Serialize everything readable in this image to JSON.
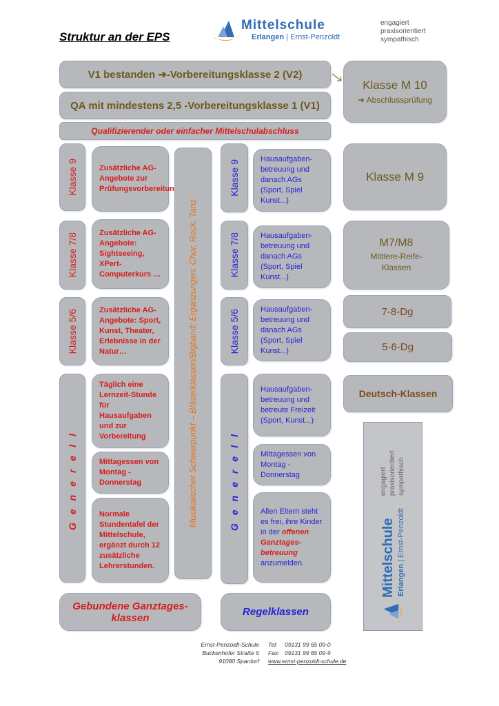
{
  "header": {
    "title": "Struktur an der EPS",
    "logo": {
      "name": "Mittelschule",
      "sub_left": "Erlangen",
      "sub_right": "Ernst-Penzoldt",
      "tagline": [
        "engagiert",
        "praxisorientiert",
        "sympathisch"
      ]
    }
  },
  "top": {
    "v2": "V1 bestanden ➔-Vorbereitungsklasse 2 (V2)",
    "v1": "QA mit mindestens 2,5 -Vorbereitungsklasse 1 (V1)",
    "abschluss": "Qualifizierender oder einfacher Mittelschulabschluss",
    "m10_title": "Klasse M 10",
    "m10_sub": "➔ Abschlussprüfung"
  },
  "left": {
    "k9": "Klasse 9",
    "k9_text": "Zusätzliche AG-Angebote zur Prüfungsvorbereitung.",
    "k78": "Klasse 7/8",
    "k78_text": "Zusätzliche AG-Angebote: Sightseeing, XPert-Computerkurs …",
    "k56": "Klasse 5/6",
    "k56_text": "Zusätzliche AG-Angebote: Sport, Kunst, Theater, Erlebnisse in der Natur…",
    "generell": "Generell",
    "g1": "Täglich eine Lernzeit-Stunde für Hausaufgaben und zur Vorbereitung",
    "g2": "Mittagessen von Montag - Donnerstag",
    "g3": "Normale Stundentafel der Mittelschule, ergänzt durch 12 zusätzliche Lehrerstunden.",
    "footer": "Gebundene Ganztages-klassen"
  },
  "music": "Musikalischer Schwerpunkt – Bläserklassen/Bigband; Ergänzungen: Chor, Rock, Tanz",
  "middle": {
    "k9": "Klasse 9",
    "k9_text": "Hausaufgaben-betreuung und danach AGs (Sport, Spiel Kunst...)",
    "k78": "Klasse 7/8",
    "k78_text": "Hausaufgaben-betreuung und danach AGs (Sport, Spiel Kunst...)",
    "k56": "Klasse 5/6",
    "k56_text": "Hausaufgaben-betreuung und danach AGs (Sport, Spiel Kunst...)",
    "generell": "Generell",
    "g1": "Hausaufgaben-betreuung und betreute Freizeit (Sport, Kunst...)",
    "g2": "Mittagessen von Montag - Donnerstag",
    "g3_a": "Allen Eltern steht es frei, ihre Kinder in der ",
    "g3_b": "offenen Ganztages-betreuung",
    "g3_c": " anzumelden.",
    "footer": "Regelklassen"
  },
  "right": {
    "m9": "Klasse M 9",
    "m78_title": "M7/M8",
    "m78_sub": "Mittlere-Reife-Klassen",
    "dg78": "7-8-Dg",
    "dg56": "5-6-Dg",
    "deutsch": "Deutsch-Klassen"
  },
  "footer": {
    "name": "Ernst-Penzoldt-Schule",
    "street": "Buckenhofer Straße 5",
    "city": "91080 Spardorf",
    "tel_label": "Tel:",
    "tel": "09131 99 65 09-0",
    "fax_label": "Fax:",
    "fax": "09131 99 65 09-9",
    "web": "www.ernst-penzoldt-schule.de"
  },
  "colors": {
    "box": "#b7b8bb",
    "olive": "#6a5a1c",
    "red": "#d41e1e",
    "blue": "#2323d6",
    "orange": "#e5741c",
    "logo_blue": "#2f6db5",
    "logo_orange": "#f0a020"
  }
}
